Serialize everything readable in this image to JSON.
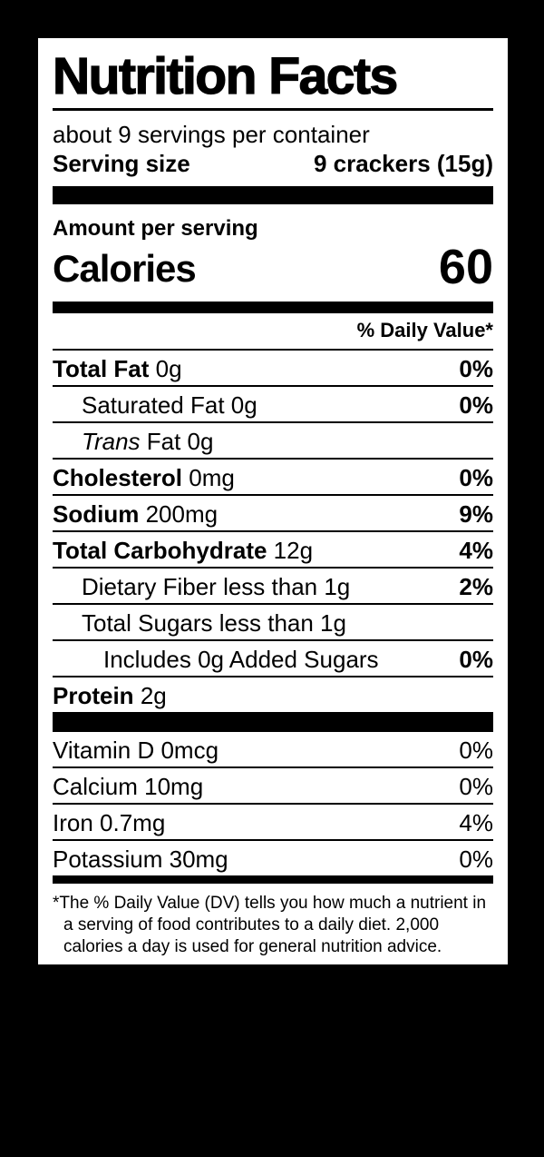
{
  "label": {
    "title": "Nutrition Facts",
    "servings_per_container": "about 9 servings per container",
    "serving_size_label": "Serving size",
    "serving_size_value": "9 crackers (15g)",
    "amount_per_serving": "Amount per serving",
    "calories_label": "Calories",
    "calories_value": "60",
    "daily_value_header": "% Daily Value*",
    "nutrients": [
      {
        "label": "Total Fat",
        "amount": "0g",
        "dv": "0%"
      },
      {
        "label": "Saturated Fat",
        "amount": "0g",
        "dv": "0%"
      },
      {
        "label": "Trans",
        "amount": "Fat 0g",
        "dv": ""
      },
      {
        "label": "Cholesterol",
        "amount": "0mg",
        "dv": "0%"
      },
      {
        "label": "Sodium",
        "amount": "200mg",
        "dv": "9%"
      },
      {
        "label": "Total Carbohydrate",
        "amount": "12g",
        "dv": "4%"
      },
      {
        "label": "Dietary Fiber",
        "amount": "less than 1g",
        "dv": "2%"
      },
      {
        "label": "Total Sugars",
        "amount": "less than 1g",
        "dv": ""
      },
      {
        "label": "Includes 0g Added Sugars",
        "amount": "",
        "dv": "0%"
      },
      {
        "label": "Protein",
        "amount": "2g",
        "dv": ""
      }
    ],
    "micronutrients": [
      {
        "label": "Vitamin D 0mcg",
        "dv": "0%"
      },
      {
        "label": "Calcium 10mg",
        "dv": "0%"
      },
      {
        "label": "Iron 0.7mg",
        "dv": "4%"
      },
      {
        "label": "Potassium 30mg",
        "dv": "0%"
      }
    ],
    "footnote": "*The % Daily Value (DV) tells you how much a nutrient in a serving of food contributes to a daily diet. 2,000 calories a day is used for general nutrition advice.",
    "colors": {
      "panel": "#ffffff",
      "ink": "#000000",
      "background": "#000000"
    }
  }
}
